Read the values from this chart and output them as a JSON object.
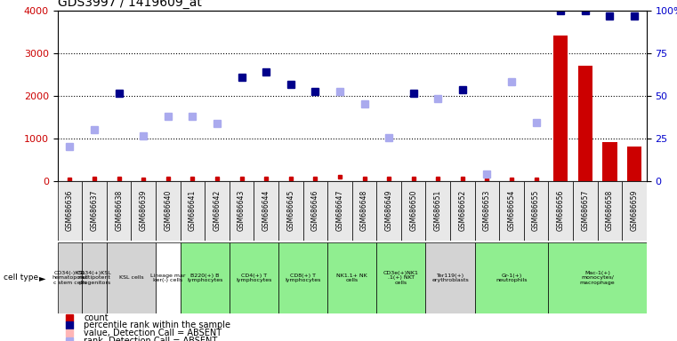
{
  "title": "GDS3997 / 1419609_at",
  "samples": [
    "GSM686636",
    "GSM686637",
    "GSM686638",
    "GSM686639",
    "GSM686640",
    "GSM686641",
    "GSM686642",
    "GSM686643",
    "GSM686644",
    "GSM686645",
    "GSM686646",
    "GSM686647",
    "GSM686648",
    "GSM686649",
    "GSM686650",
    "GSM686651",
    "GSM686652",
    "GSM686653",
    "GSM686654",
    "GSM686655",
    "GSM686656",
    "GSM686657",
    "GSM686658",
    "GSM686659"
  ],
  "count_values": [
    null,
    null,
    null,
    null,
    null,
    null,
    null,
    null,
    null,
    null,
    null,
    null,
    null,
    null,
    null,
    null,
    null,
    null,
    null,
    null,
    3400,
    2700,
    900,
    800
  ],
  "count_small": [
    30,
    50,
    50,
    40,
    50,
    50,
    50,
    50,
    50,
    50,
    50,
    100,
    50,
    50,
    50,
    50,
    50,
    40,
    40,
    40,
    null,
    null,
    null,
    null
  ],
  "rank_present": [
    null,
    null,
    2050,
    null,
    null,
    null,
    null,
    2430,
    2560,
    2260,
    2100,
    null,
    null,
    null,
    2060,
    null,
    2130,
    null,
    null,
    null,
    3990,
    3990,
    3870,
    3870
  ],
  "rank_absent": [
    800,
    1190,
    null,
    1050,
    1510,
    1510,
    1340,
    null,
    null,
    null,
    null,
    2090,
    1810,
    1020,
    null,
    1920,
    null,
    150,
    2320,
    1370,
    null,
    null,
    null,
    null
  ],
  "cell_type_groups": [
    {
      "label": "CD34(-)KSL\nhematopoiet\nc stem cells",
      "start": 0,
      "end": 1,
      "color": "#d3d3d3"
    },
    {
      "label": "CD34(+)KSL\nmultipotent\nprogenitors",
      "start": 1,
      "end": 2,
      "color": "#d3d3d3"
    },
    {
      "label": "KSL cells",
      "start": 2,
      "end": 4,
      "color": "#d3d3d3"
    },
    {
      "label": "Lineage mar\nker(-) cells",
      "start": 4,
      "end": 5,
      "color": "#ffffff"
    },
    {
      "label": "B220(+) B\nlymphocytes",
      "start": 5,
      "end": 7,
      "color": "#90ee90"
    },
    {
      "label": "CD4(+) T\nlymphocytes",
      "start": 7,
      "end": 9,
      "color": "#90ee90"
    },
    {
      "label": "CD8(+) T\nlymphocytes",
      "start": 9,
      "end": 11,
      "color": "#90ee90"
    },
    {
      "label": "NK1.1+ NK\ncells",
      "start": 11,
      "end": 13,
      "color": "#90ee90"
    },
    {
      "label": "CD3e(+)NK1\n.1(+) NKT\ncells",
      "start": 13,
      "end": 15,
      "color": "#90ee90"
    },
    {
      "label": "Ter119(+)\nerythroblasts",
      "start": 15,
      "end": 17,
      "color": "#d3d3d3"
    },
    {
      "label": "Gr-1(+)\nneutrophils",
      "start": 17,
      "end": 20,
      "color": "#90ee90"
    },
    {
      "label": "Mac-1(+)\nmonocytes/\nmacrophage",
      "start": 20,
      "end": 24,
      "color": "#90ee90"
    }
  ],
  "ylim_left": [
    0,
    4000
  ],
  "ylim_right": [
    0,
    100
  ],
  "yticks_left": [
    0,
    1000,
    2000,
    3000,
    4000
  ],
  "yticks_right": [
    0,
    25,
    50,
    75,
    100
  ],
  "bar_color": "#cc0000",
  "rank_present_color": "#00008b",
  "rank_absent_color": "#aaaaee",
  "legend_items": [
    {
      "label": "count",
      "color": "#cc0000"
    },
    {
      "label": "percentile rank within the sample",
      "color": "#00008b"
    },
    {
      "label": "value, Detection Call = ABSENT",
      "color": "#ffb6b6"
    },
    {
      "label": "rank, Detection Call = ABSENT",
      "color": "#aaaaee"
    }
  ]
}
